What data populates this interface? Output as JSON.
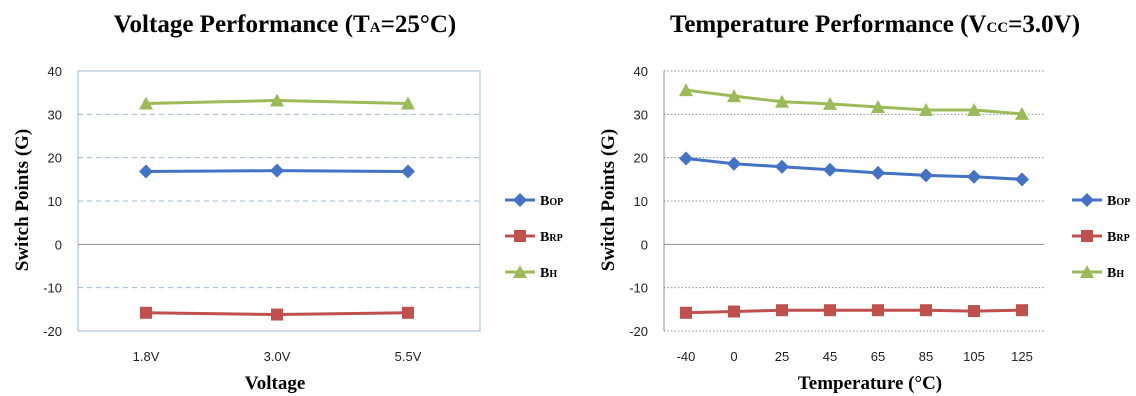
{
  "chart_data": [
    {
      "type": "line",
      "title": "Voltage Performance",
      "title_main": "Voltage Performance (T",
      "title_sub": "A",
      "title_tail": "=25°C)",
      "xlabel": "Voltage",
      "ylabel": "Switch Points (G)",
      "categories": [
        "1.8V",
        "3.0V",
        "5.5V"
      ],
      "ylim": [
        -20,
        40
      ],
      "yticks": [
        "40",
        "30",
        "20",
        "10",
        "0",
        "-10",
        "-20"
      ],
      "grid": "dashed",
      "legend_position": "right",
      "series": [
        {
          "name": "BOP",
          "label_main": "B",
          "label_sub": "OP",
          "color": "#4472C4",
          "marker": "diamond",
          "values": [
            16.8,
            17.0,
            16.8
          ]
        },
        {
          "name": "BRP",
          "label_main": "B",
          "label_sub": "RP",
          "color": "#C0504D",
          "marker": "square",
          "values": [
            -15.8,
            -16.2,
            -15.8
          ]
        },
        {
          "name": "BH",
          "label_main": "B",
          "label_sub": "H",
          "color": "#9BBB59",
          "marker": "triangle",
          "values": [
            32.5,
            33.2,
            32.5
          ]
        }
      ]
    },
    {
      "type": "line",
      "title": "Temperature Performance",
      "title_main": "Temperature Performance (V",
      "title_sub": "CC",
      "title_tail": "=3.0V)",
      "xlabel": "Temperature (°C)",
      "ylabel": "Switch Points (G)",
      "categories": [
        "-40",
        "0",
        "25",
        "45",
        "65",
        "85",
        "105",
        "125"
      ],
      "ylim": [
        -20,
        40
      ],
      "yticks": [
        "40",
        "30",
        "20",
        "10",
        "0",
        "-10",
        "-20"
      ],
      "grid": "dotted",
      "legend_position": "right",
      "series": [
        {
          "name": "BOP",
          "label_main": "B",
          "label_sub": "OP",
          "color": "#4472C4",
          "marker": "diamond",
          "values": [
            19.8,
            18.6,
            17.9,
            17.2,
            16.5,
            15.9,
            15.6,
            15.0
          ]
        },
        {
          "name": "BRP",
          "label_main": "B",
          "label_sub": "RP",
          "color": "#C0504D",
          "marker": "square",
          "values": [
            -15.8,
            -15.5,
            -15.2,
            -15.2,
            -15.2,
            -15.2,
            -15.4,
            -15.2
          ]
        },
        {
          "name": "BH",
          "label_main": "B",
          "label_sub": "H",
          "color": "#9BBB59",
          "marker": "triangle",
          "values": [
            35.6,
            34.2,
            32.9,
            32.4,
            31.7,
            31.0,
            31.0,
            30.1
          ]
        }
      ]
    }
  ]
}
